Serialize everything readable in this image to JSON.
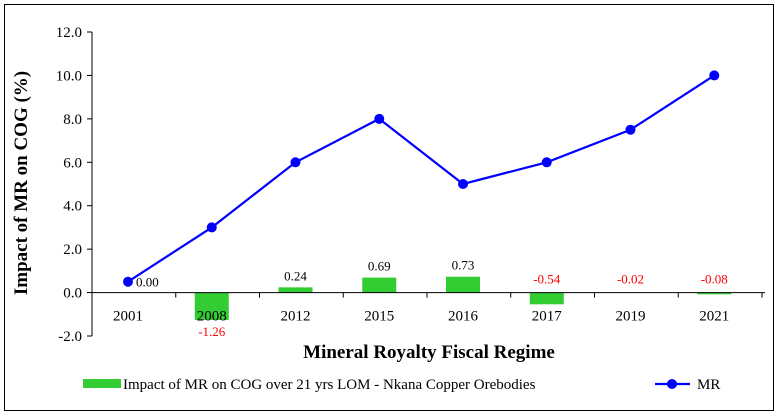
{
  "chart_data": {
    "type": "bar+line",
    "categories": [
      "2001",
      "2008",
      "2012",
      "2015",
      "2016",
      "2017",
      "2019",
      "2021"
    ],
    "xlabel": "Mineral Royalty Fiscal Regime",
    "ylabel": "Impact of MR on COG (%)",
    "ylim": [
      -2.0,
      12.0
    ],
    "yticks": [
      "-2.0",
      "0.0",
      "2.0",
      "4.0",
      "6.0",
      "8.0",
      "10.0",
      "12.0"
    ],
    "ytick_values": [
      -2,
      0,
      2,
      4,
      6,
      8,
      10,
      12
    ],
    "series": [
      {
        "name": "Impact of MR on COG over 21 yrs LOM - Nkana Copper Orebodies",
        "kind": "bar",
        "color": "#33cc33",
        "values": [
          0.0,
          -1.26,
          0.24,
          0.69,
          0.73,
          -0.54,
          -0.02,
          -0.08
        ],
        "labels": [
          "0.00",
          "-1.26",
          "0.24",
          "0.69",
          "0.73",
          "-0.54",
          "-0.02",
          "-0.08"
        ],
        "label_colors": [
          "#000000",
          "#ff0000",
          "#000000",
          "#000000",
          "#000000",
          "#ff0000",
          "#ff0000",
          "#ff0000"
        ]
      },
      {
        "name": "MR",
        "kind": "line",
        "color": "#0000ff",
        "values": [
          0.5,
          3.0,
          6.0,
          8.0,
          5.0,
          6.0,
          7.5,
          10.0
        ]
      }
    ],
    "grid": false,
    "legend": "bottom"
  }
}
